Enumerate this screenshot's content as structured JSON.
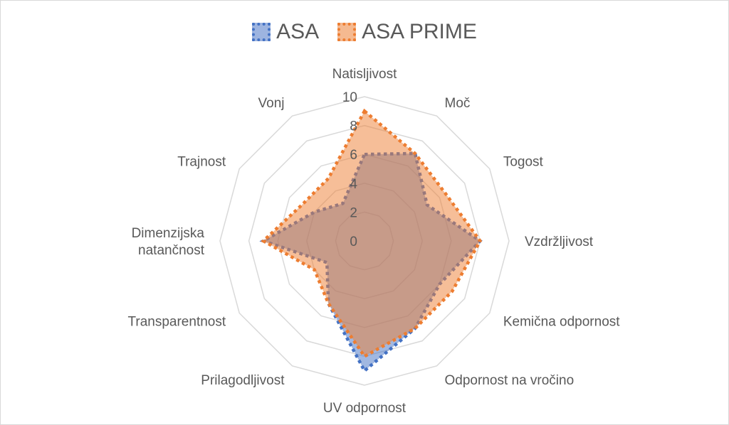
{
  "chart_data": {
    "type": "radar",
    "title": "",
    "categories": [
      "Natisljivost",
      "Moč",
      "Togost",
      "Vzdržljivost",
      "Kemična odpornost",
      "Odpornost na vročino",
      "UV odpornost",
      "Prilagodljivost",
      "Transparentnost",
      "Dimenzijska natančnost",
      "Trajnost",
      "Vonj"
    ],
    "category_lines": [
      [
        "Natisljivost"
      ],
      [
        "Moč"
      ],
      [
        "Togost"
      ],
      [
        "Vzdržljivost"
      ],
      [
        "Kemična odpornost"
      ],
      [
        "Odpornost na vročino"
      ],
      [
        "UV odpornost"
      ],
      [
        "Prilagodljivost"
      ],
      [
        "Transparentnost"
      ],
      [
        "Dimenzijska",
        "natančnost"
      ],
      [
        "Trajnost"
      ],
      [
        "Vonj"
      ]
    ],
    "series": [
      {
        "name": "ASA",
        "values": [
          6,
          7,
          5,
          8,
          6,
          7,
          9,
          5,
          3,
          7,
          4,
          3
        ],
        "line_color": "#4472c4",
        "fill_color": "rgba(68,114,196,0.5)"
      },
      {
        "name": "ASA PRIME",
        "values": [
          9,
          7,
          6.5,
          8,
          7,
          7,
          8,
          5,
          4,
          7,
          5,
          5
        ],
        "line_color": "#ed7d31",
        "fill_color": "rgba(237,125,49,0.5)"
      }
    ],
    "radial_ticks": [
      0,
      2,
      4,
      6,
      8,
      10
    ],
    "rlim": [
      0,
      10
    ],
    "grid": true,
    "legend_position": "top"
  },
  "legend": {
    "items": [
      {
        "label": "ASA",
        "color": "#4472c4",
        "fill": "#9db4e0"
      },
      {
        "label": "ASA PRIME",
        "color": "#ed7d31",
        "fill": "#f5b990"
      }
    ]
  }
}
